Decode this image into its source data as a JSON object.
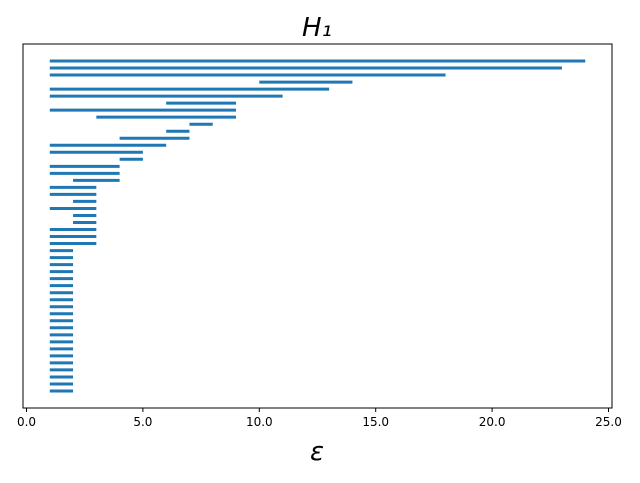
{
  "chart_data": {
    "type": "barcode",
    "title": "H₁",
    "xlabel": "ε",
    "color": "#1f77b4",
    "bars": [
      [
        1,
        24
      ],
      [
        1,
        23
      ],
      [
        1,
        18
      ],
      [
        10,
        14
      ],
      [
        1,
        13
      ],
      [
        1,
        11
      ],
      [
        6,
        9
      ],
      [
        1,
        9
      ],
      [
        3,
        9
      ],
      [
        7,
        8
      ],
      [
        6,
        7
      ],
      [
        4,
        7
      ],
      [
        1,
        6
      ],
      [
        1,
        5
      ],
      [
        4,
        5
      ],
      [
        1,
        4
      ],
      [
        1,
        4
      ],
      [
        2,
        4
      ],
      [
        1,
        3
      ],
      [
        1,
        3
      ],
      [
        2,
        3
      ],
      [
        1,
        3
      ],
      [
        2,
        3
      ],
      [
        2,
        3
      ],
      [
        1,
        3
      ],
      [
        1,
        3
      ],
      [
        1,
        3
      ],
      [
        1,
        2
      ],
      [
        1,
        2
      ],
      [
        1,
        2
      ],
      [
        1,
        2
      ],
      [
        1,
        2
      ],
      [
        1,
        2
      ],
      [
        1,
        2
      ],
      [
        1,
        2
      ],
      [
        1,
        2
      ],
      [
        1,
        2
      ],
      [
        1,
        2
      ],
      [
        1,
        2
      ],
      [
        1,
        2
      ],
      [
        1,
        2
      ],
      [
        1,
        2
      ],
      [
        1,
        2
      ],
      [
        1,
        2
      ],
      [
        1,
        2
      ],
      [
        1,
        2
      ],
      [
        1,
        2
      ],
      [
        1,
        2
      ]
    ],
    "xlim": [
      -0.15,
      25.15
    ],
    "xticks": [
      {
        "value": 0,
        "label": "0.0"
      },
      {
        "value": 5,
        "label": "5.0"
      },
      {
        "value": 10,
        "label": "10.0"
      },
      {
        "value": 15,
        "label": "15.0"
      },
      {
        "value": 20,
        "label": "20.0"
      },
      {
        "value": 25,
        "label": "25.0"
      }
    ]
  }
}
